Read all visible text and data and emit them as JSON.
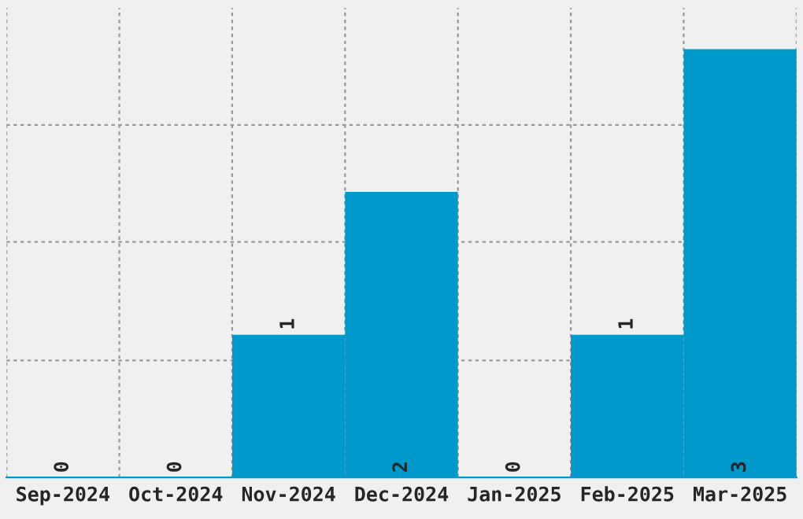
{
  "chart_data": {
    "type": "bar",
    "categories": [
      "Sep-2024",
      "Oct-2024",
      "Nov-2024",
      "Dec-2024",
      "Jan-2025",
      "Feb-2025",
      "Mar-2025"
    ],
    "values": [
      0,
      0,
      1,
      2,
      0,
      1,
      3
    ],
    "color": "#0099cc",
    "ylim": [
      0,
      3.29
    ],
    "yticks": [
      {
        "value": 0.82,
        "label": null
      },
      {
        "value": 1.65,
        "label": null
      },
      {
        "value": 2.47,
        "label": null
      }
    ],
    "tick_labels": "x",
    "grid": true,
    "data_labels": true
  }
}
